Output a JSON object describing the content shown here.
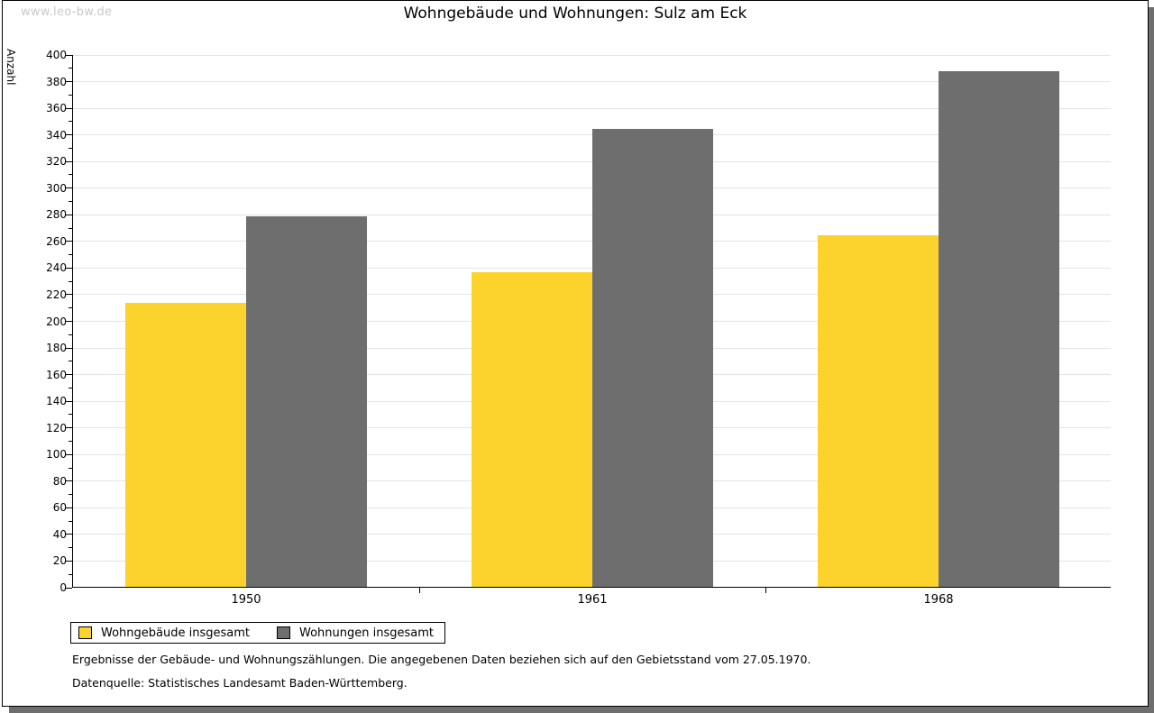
{
  "watermark": "www.leo-bw.de",
  "chart_data": {
    "type": "bar",
    "title": "Wohngebäude und Wohnungen: Sulz am Eck",
    "ylabel": "Anzahl",
    "xlabel": "",
    "categories": [
      "1950",
      "1961",
      "1968"
    ],
    "series": [
      {
        "name": "Wohngebäude insgesamt",
        "color": "#fcd32d",
        "values": [
          213,
          236,
          264
        ]
      },
      {
        "name": "Wohnungen insgesamt",
        "color": "#6e6e6e",
        "values": [
          278,
          344,
          387
        ]
      }
    ],
    "ylim": [
      0,
      400
    ],
    "ytick_major": 20,
    "ytick_minor": 10,
    "grid": "horizontal-major",
    "legend_position": "bottom-left"
  },
  "footnotes": [
    "Ergebnisse der Gebäude- und Wohnungszählungen. Die angegebenen Daten beziehen sich auf den Gebietsstand vom 27.05.1970.",
    "Datenquelle: Statistisches Landesamt Baden-Württemberg."
  ],
  "colors": {
    "frame_border": "#000000",
    "frame_shadow": "#6e6e6e",
    "gridline": "#e3e3e3",
    "watermark": "#c9c9c9",
    "background": "#ffffff"
  }
}
